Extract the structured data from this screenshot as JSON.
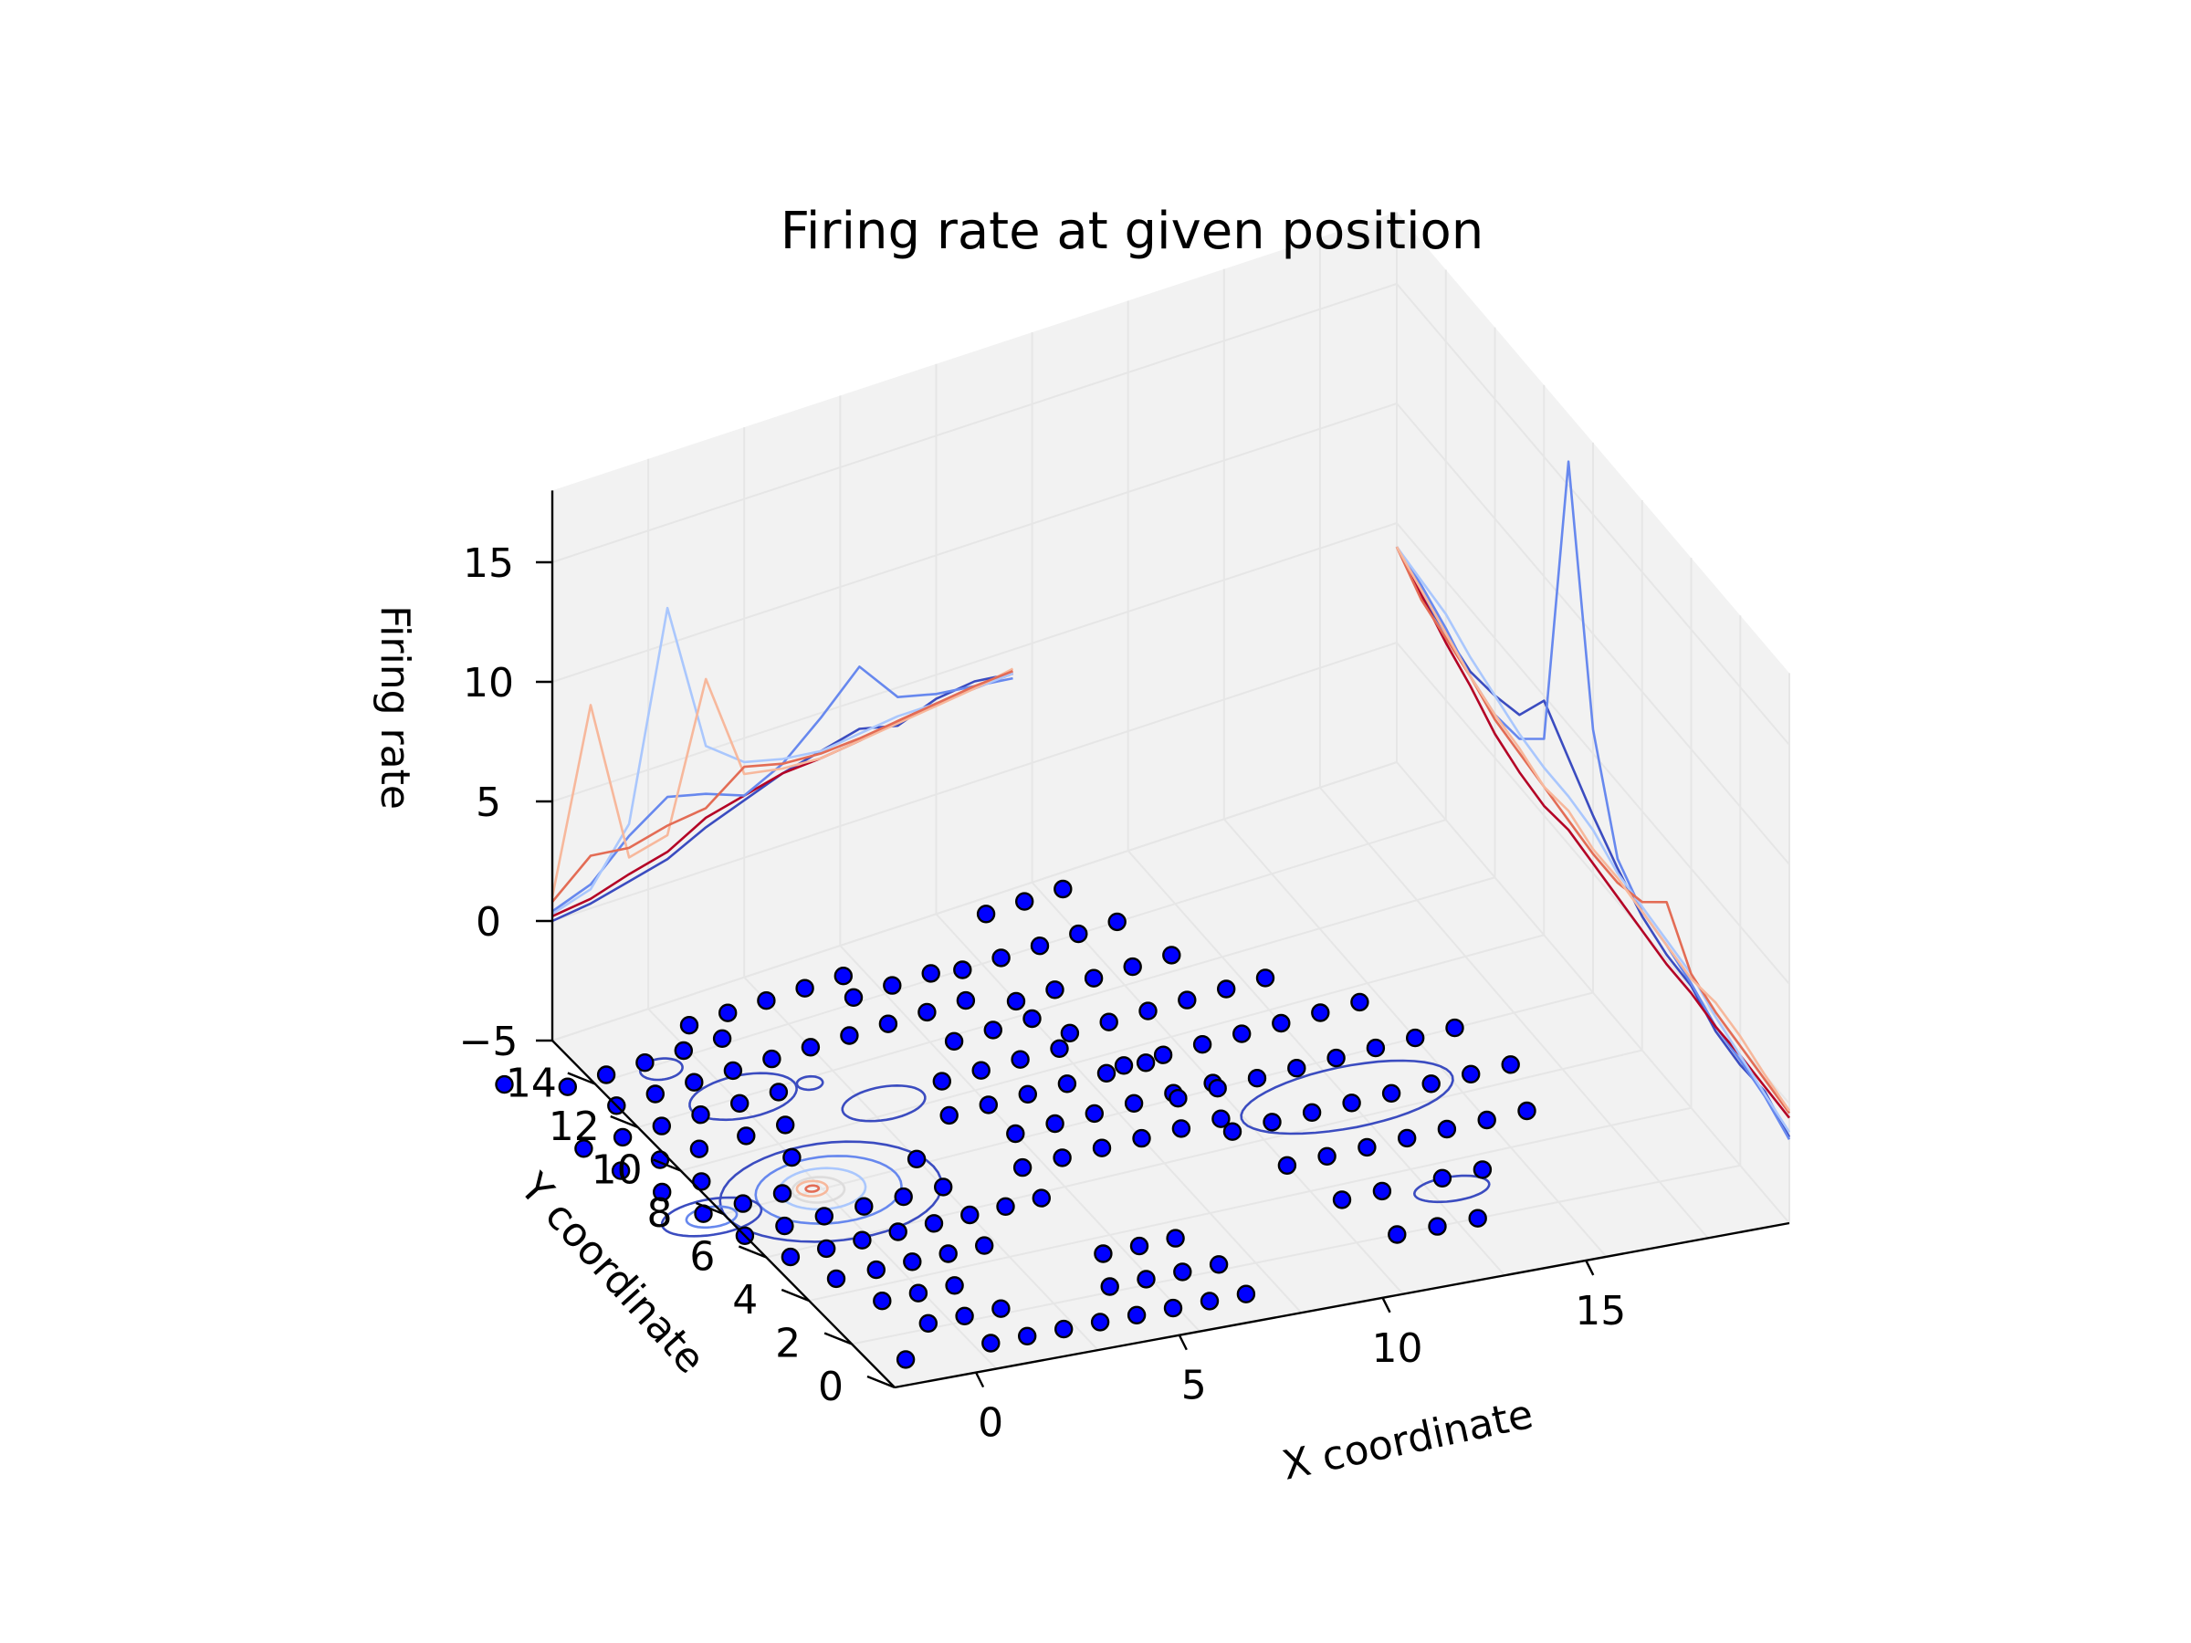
{
  "chart_data": {
    "type": "3d-line-contour-scatter",
    "title": "Firing rate at given position",
    "xlabel": "X coordinate",
    "ylabel": "Y coordinate",
    "zlabel": "Firing rate",
    "xlim": [
      -2,
      20
    ],
    "ylim": [
      0,
      16
    ],
    "zlim": [
      -5,
      18
    ],
    "xticks": [
      "0",
      "5",
      "10",
      "15"
    ],
    "yticks": [
      "0",
      "2",
      "4",
      "6",
      "8",
      "10",
      "12",
      "14"
    ],
    "zticks": [
      "−5",
      "0",
      "5",
      "10",
      "15"
    ],
    "grid": true,
    "colors": {
      "pane": "#f2f2f2",
      "grid": "#e6e6e6",
      "marker_face": "#0000ff",
      "marker_edge": "#000000",
      "colormap": "coolwarm"
    },
    "x_profile_series": [
      {
        "color": "#3b4cc0",
        "x": [
          -2,
          -1,
          0,
          1,
          2,
          3,
          4,
          5,
          6,
          7,
          8,
          9,
          10
        ],
        "z": [
          0.0,
          0.2,
          0.6,
          1.0,
          1.8,
          2.4,
          3.0,
          3.4,
          3.8,
          3.4,
          4.0,
          4.2,
          4.0
        ]
      },
      {
        "color": "#b40426",
        "x": [
          -2,
          -1,
          0,
          1,
          2,
          3,
          4,
          5,
          6,
          7,
          8,
          9,
          10
        ],
        "z": [
          0.2,
          0.4,
          0.9,
          1.3,
          2.2,
          2.6,
          3.0,
          3.1,
          3.3,
          3.6,
          3.8,
          3.9,
          4.0
        ]
      },
      {
        "color": "#6788ee",
        "x": [
          -2,
          -1,
          0,
          1,
          2,
          3,
          4,
          5,
          6,
          7,
          8,
          9,
          10
        ],
        "z": [
          0.4,
          1.0,
          2.5,
          3.6,
          3.2,
          2.6,
          3.4,
          4.8,
          6.4,
          4.6,
          4.2,
          4.0,
          3.8
        ]
      },
      {
        "color": "#aac7fd",
        "x": [
          -2,
          -1,
          0,
          1,
          2,
          3,
          4,
          5,
          6,
          7,
          8,
          9,
          10
        ],
        "z": [
          0.3,
          0.8,
          3.0,
          11.5,
          5.2,
          4.0,
          3.6,
          3.4,
          3.6,
          3.8,
          3.8,
          3.9,
          4.0
        ]
      },
      {
        "color": "#f7b89c",
        "x": [
          -2,
          -1,
          0,
          1,
          2,
          3,
          4,
          5,
          6,
          7,
          8,
          9,
          10
        ],
        "z": [
          1.0,
          8.5,
          1.6,
          2.0,
          8.0,
          3.5,
          3.2,
          3.1,
          3.3,
          3.5,
          3.7,
          3.9,
          4.2
        ]
      },
      {
        "color": "#e36c55",
        "x": [
          -2,
          -1,
          0,
          1,
          2,
          3,
          4,
          5,
          6,
          7,
          8,
          9,
          10
        ],
        "z": [
          0.8,
          2.2,
          2.0,
          2.4,
          2.6,
          3.8,
          3.4,
          3.3,
          3.4,
          3.6,
          3.8,
          4.0,
          4.1
        ]
      }
    ],
    "y_profile_series": [
      {
        "color": "#3b4cc0",
        "y": [
          16,
          15,
          14,
          13,
          12,
          11,
          10,
          9,
          8,
          7,
          6,
          5,
          4,
          3,
          2,
          1,
          0
        ],
        "z": [
          4.0,
          3.2,
          2.8,
          2.4,
          2.6,
          3.0,
          4.8,
          3.6,
          2.4,
          1.4,
          0.6,
          0.2,
          0.1,
          -0.6,
          -0.8,
          -0.7,
          -1.4
        ]
      },
      {
        "color": "#6788ee",
        "y": [
          16,
          15,
          14,
          13,
          12,
          11,
          10,
          9,
          8,
          7,
          6,
          5,
          4,
          3,
          2,
          1,
          0
        ],
        "z": [
          4.0,
          3.6,
          3.0,
          2.2,
          1.8,
          2.0,
          3.2,
          16.0,
          6.0,
          1.8,
          0.8,
          0.6,
          0.2,
          -0.4,
          -0.6,
          -0.9,
          -1.5
        ]
      },
      {
        "color": "#b40426",
        "y": [
          16,
          15,
          14,
          13,
          12,
          11,
          10,
          9,
          8,
          7,
          6,
          5,
          4,
          3,
          2,
          1,
          0
        ],
        "z": [
          4.0,
          3.2,
          2.4,
          1.8,
          1.0,
          0.6,
          0.4,
          0.6,
          0.4,
          0.2,
          0.0,
          -0.2,
          -0.2,
          -0.4,
          -0.4,
          -0.5,
          -0.6
        ]
      },
      {
        "color": "#aac7fd",
        "y": [
          16,
          15,
          14,
          13,
          12,
          11,
          10,
          9,
          8,
          7,
          6,
          5,
          4,
          3,
          2,
          1,
          0
        ],
        "z": [
          4.0,
          3.8,
          3.6,
          3.0,
          2.6,
          2.2,
          2.0,
          2.0,
          1.8,
          1.2,
          1.0,
          0.8,
          0.6,
          0.0,
          -0.4,
          -0.8,
          -1.2
        ]
      },
      {
        "color": "#e36c55",
        "y": [
          16,
          15,
          14,
          13,
          12,
          11,
          10,
          9,
          8,
          7,
          6,
          5,
          4,
          3,
          2,
          1,
          0
        ],
        "z": [
          4.0,
          3.0,
          2.6,
          2.2,
          1.6,
          1.4,
          1.2,
          1.0,
          0.8,
          0.8,
          1.2,
          2.4,
          0.6,
          0.2,
          0.0,
          -0.2,
          -0.4
        ]
      },
      {
        "color": "#f7b89c",
        "y": [
          16,
          15,
          14,
          13,
          12,
          11,
          10,
          9,
          8,
          7,
          6,
          5,
          4,
          3,
          2,
          1,
          0
        ],
        "z": [
          4.0,
          3.4,
          2.8,
          2.2,
          1.8,
          1.6,
          1.2,
          1.4,
          1.0,
          1.0,
          0.8,
          0.6,
          0.4,
          0.6,
          0.4,
          0.0,
          -0.3
        ]
      }
    ],
    "scatter_points_z": -5,
    "scatter_points": [
      [
        -1.2,
        1.0
      ],
      [
        0.9,
        1.0
      ],
      [
        1.8,
        1.0
      ],
      [
        2.7,
        1.0
      ],
      [
        3.6,
        1.0
      ],
      [
        4.5,
        1.0
      ],
      [
        5.4,
        1.0
      ],
      [
        6.3,
        1.0
      ],
      [
        7.2,
        1.0
      ],
      [
        0.0,
        2.2
      ],
      [
        0.9,
        2.2
      ],
      [
        1.8,
        2.2
      ],
      [
        4.5,
        2.2
      ],
      [
        5.4,
        2.2
      ],
      [
        6.3,
        2.2
      ],
      [
        7.2,
        2.2
      ],
      [
        -0.5,
        3.4
      ],
      [
        0.4,
        3.4
      ],
      [
        1.3,
        3.4
      ],
      [
        5.0,
        3.4
      ],
      [
        5.9,
        3.4
      ],
      [
        6.8,
        3.4
      ],
      [
        -1.0,
        4.6
      ],
      [
        0.0,
        4.6
      ],
      [
        0.9,
        4.6
      ],
      [
        1.8,
        4.6
      ],
      [
        2.7,
        4.6
      ],
      [
        -1.5,
        5.8
      ],
      [
        -0.6,
        5.8
      ],
      [
        0.3,
        5.8
      ],
      [
        1.2,
        5.8
      ],
      [
        2.1,
        5.8
      ],
      [
        3.0,
        5.8
      ],
      [
        3.9,
        5.8
      ],
      [
        4.8,
        5.8
      ],
      [
        -2.0,
        7.0
      ],
      [
        -1.0,
        7.0
      ],
      [
        0.0,
        7.0
      ],
      [
        1.0,
        7.0
      ],
      [
        2.0,
        7.0
      ],
      [
        3.0,
        7.0
      ],
      [
        5.0,
        7.0
      ],
      [
        6.0,
        7.0
      ],
      [
        7.0,
        7.0
      ],
      [
        8.0,
        7.0
      ],
      [
        9.0,
        7.0
      ],
      [
        10.0,
        7.0
      ],
      [
        -2.4,
        8.2
      ],
      [
        -1.4,
        8.2
      ],
      [
        -0.4,
        8.2
      ],
      [
        3.0,
        8.2
      ],
      [
        5.5,
        8.2
      ],
      [
        6.5,
        8.2
      ],
      [
        7.5,
        8.2
      ],
      [
        8.5,
        8.2
      ],
      [
        9.5,
        8.2
      ],
      [
        10.5,
        8.2
      ],
      [
        -2.8,
        9.4
      ],
      [
        -1.8,
        9.4
      ],
      [
        0.5,
        9.4
      ],
      [
        4.5,
        9.4
      ],
      [
        5.5,
        9.4
      ],
      [
        6.5,
        9.4
      ],
      [
        7.5,
        9.4
      ],
      [
        8.5,
        9.4
      ],
      [
        9.5,
        9.4
      ],
      [
        -3.2,
        10.6
      ],
      [
        -2.2,
        10.6
      ],
      [
        -1.2,
        10.6
      ],
      [
        0.0,
        10.6
      ],
      [
        1.0,
        10.6
      ],
      [
        5.0,
        10.6
      ],
      [
        6.0,
        10.6
      ],
      [
        7.0,
        10.6
      ],
      [
        8.0,
        10.6
      ],
      [
        -3.5,
        11.8
      ],
      [
        -2.5,
        11.8
      ],
      [
        -1.5,
        11.8
      ],
      [
        -0.5,
        11.8
      ],
      [
        0.5,
        11.8
      ],
      [
        1.5,
        11.8
      ],
      [
        6.0,
        11.8
      ],
      [
        7.0,
        11.8
      ],
      [
        8.0,
        11.8
      ],
      [
        -2.0,
        13.0
      ],
      [
        -1.0,
        13.0
      ],
      [
        0.0,
        13.0
      ],
      [
        1.0,
        13.0
      ],
      [
        2.0,
        13.0
      ],
      [
        3.0,
        13.0
      ],
      [
        4.0,
        13.0
      ],
      [
        5.0,
        13.0
      ],
      [
        6.0,
        13.0
      ],
      [
        7.0,
        13.0
      ],
      [
        -2.6,
        14.2
      ],
      [
        -1.6,
        14.2
      ],
      [
        -0.6,
        14.2
      ],
      [
        0.4,
        14.2
      ],
      [
        1.4,
        14.2
      ],
      [
        4.8,
        14.2
      ],
      [
        5.8,
        14.2
      ],
      [
        6.8,
        14.2
      ],
      [
        -3.8,
        15.0
      ],
      [
        1.0,
        15.0
      ],
      [
        2.0,
        15.0
      ],
      [
        3.0,
        15.0
      ],
      [
        4.0,
        15.0
      ],
      [
        5.0,
        15.0
      ],
      [
        11.5,
        2.0
      ],
      [
        12.5,
        2.0
      ],
      [
        13.5,
        2.0
      ],
      [
        11.0,
        3.5
      ],
      [
        12.0,
        3.5
      ],
      [
        13.5,
        3.5
      ],
      [
        14.5,
        3.5
      ],
      [
        10.5,
        5.0
      ],
      [
        11.5,
        5.0
      ],
      [
        12.5,
        5.0
      ],
      [
        13.5,
        5.0
      ],
      [
        14.5,
        5.0
      ],
      [
        15.5,
        5.0
      ],
      [
        16.5,
        5.0
      ],
      [
        10.0,
        6.5
      ],
      [
        11.0,
        6.5
      ],
      [
        12.0,
        6.5
      ],
      [
        13.0,
        6.5
      ],
      [
        14.0,
        6.5
      ],
      [
        15.0,
        6.5
      ],
      [
        16.0,
        6.5
      ],
      [
        17.0,
        6.5
      ],
      [
        9.5,
        8.0
      ],
      [
        10.5,
        8.0
      ],
      [
        11.5,
        8.0
      ],
      [
        12.5,
        8.0
      ],
      [
        13.5,
        8.0
      ],
      [
        14.5,
        8.0
      ],
      [
        15.5,
        8.0
      ],
      [
        16.5,
        8.0
      ],
      [
        9.0,
        9.5
      ],
      [
        10.0,
        9.5
      ],
      [
        11.0,
        9.5
      ],
      [
        12.0,
        9.5
      ],
      [
        13.0,
        9.5
      ],
      [
        14.0,
        9.5
      ],
      [
        15.0,
        9.5
      ],
      [
        8.5,
        11.0
      ],
      [
        9.5,
        11.0
      ],
      [
        10.5,
        11.0
      ],
      [
        11.5,
        11.0
      ],
      [
        12.5,
        11.0
      ],
      [
        13.5,
        11.0
      ],
      [
        8.0,
        12.5
      ],
      [
        9.0,
        12.5
      ],
      [
        10.0,
        12.5
      ],
      [
        11.0,
        12.5
      ],
      [
        12.0,
        12.5
      ],
      [
        7.5,
        14.0
      ],
      [
        8.5,
        14.0
      ],
      [
        9.5,
        14.0
      ],
      [
        10.5,
        14.0
      ],
      [
        11.5,
        14.0
      ],
      [
        9.0,
        15.5
      ],
      [
        10.0,
        15.5
      ],
      [
        11.0,
        15.5
      ]
    ],
    "contours_z": -5,
    "contours": [
      {
        "color": "#3b4cc0",
        "cx": 0.6,
        "cy": 7.8,
        "rx": 2.6,
        "ry": 1.9
      },
      {
        "color": "#6788ee",
        "cx": 0.6,
        "cy": 7.9,
        "rx": 1.7,
        "ry": 1.3
      },
      {
        "color": "#aac7fd",
        "cx": 0.5,
        "cy": 8.0,
        "rx": 1.0,
        "ry": 0.8
      },
      {
        "color": "#dddcdc",
        "cx": 0.4,
        "cy": 8.0,
        "rx": 0.6,
        "ry": 0.5
      },
      {
        "color": "#f7b89c",
        "cx": 0.3,
        "cy": 8.1,
        "rx": 0.35,
        "ry": 0.3
      },
      {
        "color": "#e36c55",
        "cx": 0.3,
        "cy": 8.1,
        "rx": 0.15,
        "ry": 0.12
      },
      {
        "color": "#3b4cc0",
        "cx": -2.3,
        "cy": 8.0,
        "rx": 1.2,
        "ry": 0.7
      },
      {
        "color": "#6788ee",
        "cx": -2.3,
        "cy": 8.0,
        "rx": 0.6,
        "ry": 0.4
      },
      {
        "color": "#3b4cc0",
        "cx": 0.7,
        "cy": 12.0,
        "rx": 1.3,
        "ry": 0.8
      },
      {
        "color": "#3b4cc0",
        "cx": 3.4,
        "cy": 10.4,
        "rx": 1.0,
        "ry": 0.6
      },
      {
        "color": "#3b4cc0",
        "cx": 2.3,
        "cy": 11.8,
        "rx": 0.3,
        "ry": 0.25
      },
      {
        "color": "#3b4cc0",
        "cx": -0.4,
        "cy": 13.8,
        "rx": 0.5,
        "ry": 0.4
      },
      {
        "color": "#3b4cc0",
        "cx": 13.0,
        "cy": 6.7,
        "rx": 2.6,
        "ry": 1.0
      },
      {
        "color": "#3b4cc0",
        "cx": 13.5,
        "cy": 3.1,
        "rx": 0.9,
        "ry": 0.4
      }
    ]
  }
}
